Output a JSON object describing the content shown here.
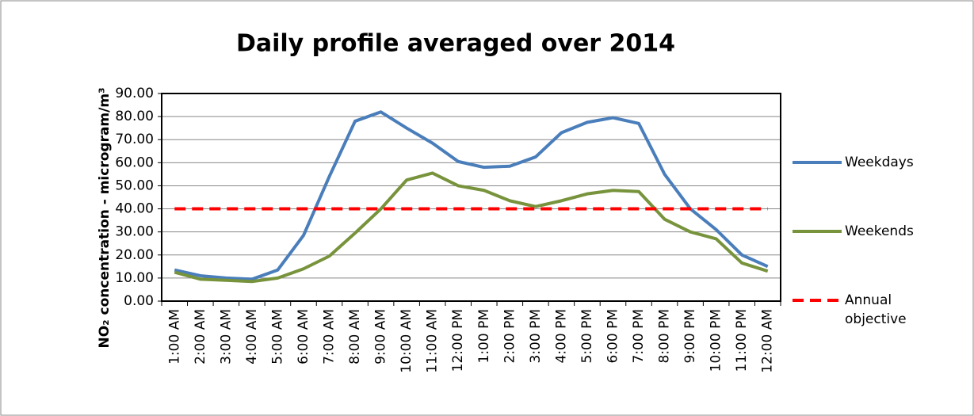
{
  "chart_data": {
    "type": "line",
    "title": "Daily profile averaged over 2014",
    "ylabel": "NO₂ concentration - microgram/m³",
    "categories": [
      "1:00 AM",
      "2:00 AM",
      "3:00 AM",
      "4:00 AM",
      "5:00 AM",
      "6:00 AM",
      "7:00 AM",
      "8:00 AM",
      "9:00 AM",
      "10:00 AM",
      "11:00 AM",
      "12:00 PM",
      "1:00 PM",
      "2:00 PM",
      "3:00 PM",
      "4:00 PM",
      "5:00 PM",
      "6:00 PM",
      "7:00 PM",
      "8:00 PM",
      "9:00 PM",
      "10:00 PM",
      "11:00 PM",
      "12:00 AM"
    ],
    "series": [
      {
        "name": "Weekdays",
        "color": "#4a7ebb",
        "values": [
          13.5,
          11,
          10,
          9.5,
          13.5,
          28.5,
          54,
          78,
          82,
          75,
          68.5,
          60.5,
          58,
          58.5,
          62.5,
          73,
          77.5,
          79.5,
          77,
          55,
          40,
          31,
          20,
          15
        ]
      },
      {
        "name": "Weekends",
        "color": "#77933c",
        "values": [
          12.5,
          9.5,
          9,
          8.5,
          10,
          14,
          19.5,
          29.5,
          40,
          52.5,
          55.5,
          50,
          48,
          43.5,
          41,
          43.5,
          46.5,
          48,
          47.5,
          35.5,
          30,
          27,
          16.5,
          13
        ]
      },
      {
        "name": "Annual objective",
        "color": "#ff0000",
        "dashed": true,
        "values": [
          40,
          40,
          40,
          40,
          40,
          40,
          40,
          40,
          40,
          40,
          40,
          40,
          40,
          40,
          40,
          40,
          40,
          40,
          40,
          40,
          40,
          40,
          40,
          40
        ]
      }
    ],
    "ylim": [
      0,
      90
    ],
    "yticks": [
      {
        "value": 0,
        "label": "0.00"
      },
      {
        "value": 10,
        "label": "10.00"
      },
      {
        "value": 20,
        "label": "20.00"
      },
      {
        "value": 30,
        "label": "30.00"
      },
      {
        "value": 40,
        "label": "40.00"
      },
      {
        "value": 50,
        "label": "50.00"
      },
      {
        "value": 60,
        "label": "60.00"
      },
      {
        "value": 70,
        "label": "70.00"
      },
      {
        "value": 80,
        "label": "80.00"
      },
      {
        "value": 90,
        "label": "90.00"
      }
    ],
    "grid": true,
    "legend": "right"
  }
}
